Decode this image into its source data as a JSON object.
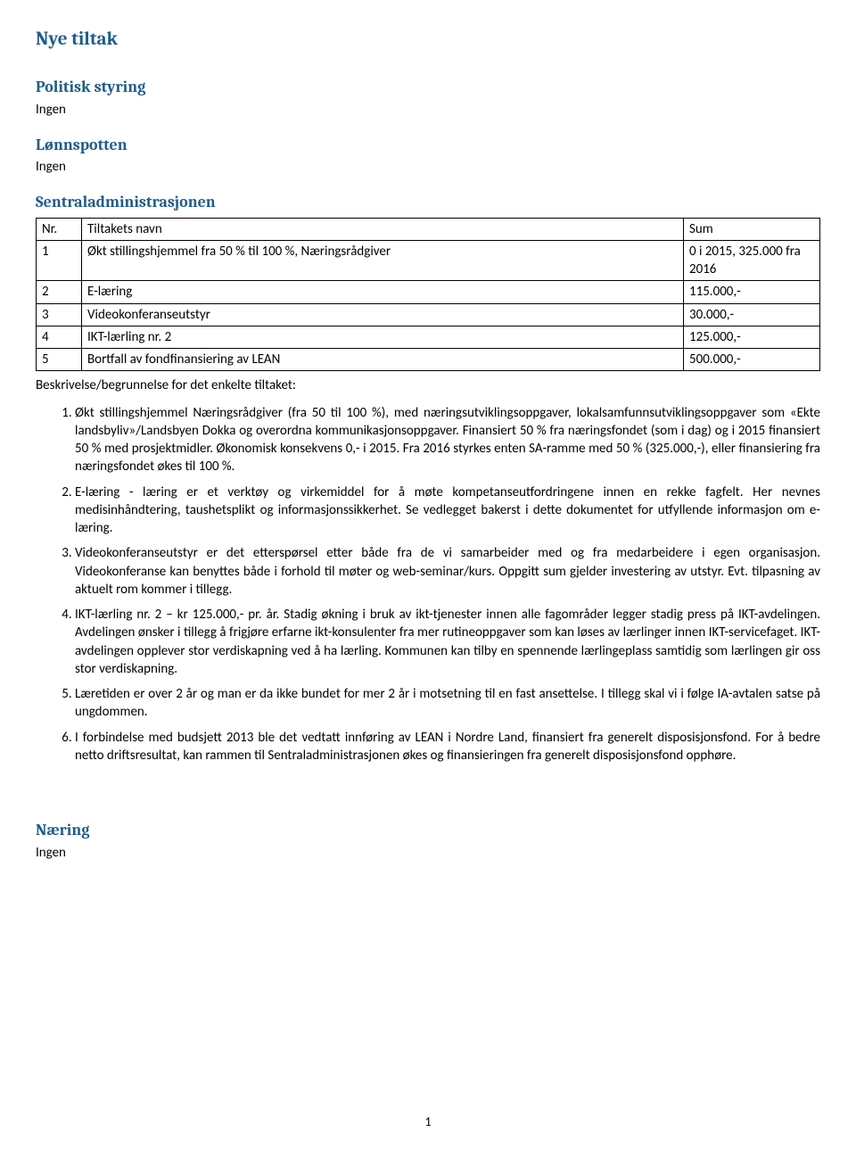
{
  "title": "Nye tiltak",
  "sections": {
    "politisk": {
      "heading": "Politisk styring",
      "ingen": "Ingen"
    },
    "lonnspotten": {
      "heading": "Lønnspotten",
      "ingen": "Ingen"
    },
    "sentral": {
      "heading": "Sentraladministrasjonen"
    },
    "naering": {
      "heading": "Næring",
      "ingen": "Ingen"
    }
  },
  "table": {
    "headers": {
      "nr": "Nr.",
      "navn": "Tiltakets navn",
      "sum": "Sum"
    },
    "rows": [
      {
        "nr": "1",
        "navn": "Økt stillingshjemmel fra 50 % til 100 %, Næringsrådgiver",
        "sum": "0 i 2015, 325.000 fra 2016"
      },
      {
        "nr": "2",
        "navn": "E-læring",
        "sum": "115.000,-"
      },
      {
        "nr": "3",
        "navn": "Videokonferanseutstyr",
        "sum": "30.000,-"
      },
      {
        "nr": "4",
        "navn": "IKT-lærling nr. 2",
        "sum": "125.000,-"
      },
      {
        "nr": "5",
        "navn": "Bortfall av fondfinansiering av LEAN",
        "sum": "500.000,-"
      }
    ]
  },
  "beskrivelse_label": "Beskrivelse/begrunnelse for det enkelte tiltaket:",
  "items": [
    "Økt stillingshjemmel Næringsrådgiver (fra 50 til 100 %), med næringsutviklingsoppgaver, lokalsamfunnsutviklingsoppgaver som «Ekte landsbyliv»/Landsbyen Dokka og overordna kommunikasjonsoppgaver. Finansiert 50 % fra næringsfondet (som i dag) og i 2015 finansiert 50 % med prosjektmidler. Økonomisk konsekvens 0,- i 2015. Fra 2016 styrkes enten SA-ramme med 50 % (325.000,-), eller finansiering fra næringsfondet økes til 100 %.",
    "E-læring - læring er et verktøy og virkemiddel for å møte kompetanseutfordringene innen en rekke fagfelt. Her nevnes medisinhåndtering, taushetsplikt og informasjonssikkerhet. Se vedlegget bakerst i dette dokumentet for utfyllende informasjon om e-læring.",
    "Videokonferanseutstyr er det etterspørsel etter både fra de vi samarbeider med og fra medarbeidere i egen organisasjon. Videokonferanse kan benyttes både i forhold til møter og web-seminar/kurs. Oppgitt sum gjelder investering av utstyr. Evt. tilpasning av aktuelt rom kommer i tillegg.",
    "IKT-lærling nr. 2 – kr 125.000,- pr. år. Stadig økning i bruk av ikt-tjenester innen alle fagområder legger stadig press på IKT-avdelingen. Avdelingen ønsker i tillegg å frigjøre erfarne ikt-konsulenter fra mer rutineoppgaver som kan løses av lærlinger innen IKT-servicefaget. IKT-avdelingen opplever stor verdiskapning ved å ha lærling. Kommunen kan tilby en spennende lærlingeplass samtidig som lærlingen gir oss stor verdiskapning.",
    "Læretiden er over 2 år og man er da ikke bundet for mer 2 år i motsetning til en fast ansettelse. I tillegg skal vi i følge IA-avtalen satse på ungdommen.",
    "I forbindelse med budsjett 2013 ble det vedtatt innføring av LEAN i Nordre Land, finansiert fra generelt disposisjonsfond. For å bedre netto driftsresultat, kan rammen til Sentraladministrasjonen økes og finansieringen fra generelt disposisjonsfond opphøre."
  ],
  "page_number": "1",
  "colors": {
    "heading": "#1f5c8b",
    "text": "#000000",
    "background": "#ffffff",
    "border": "#000000"
  }
}
